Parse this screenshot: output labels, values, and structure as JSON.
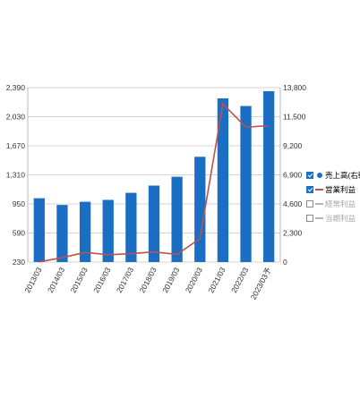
{
  "chart_data": {
    "type": "bar",
    "categories": [
      "2013/03",
      "2014/03",
      "2015/03",
      "2016/03",
      "2017/03",
      "2018/03",
      "2019/03",
      "2020/03",
      "2021/03",
      "2022/03",
      "2023/03予"
    ],
    "series": [
      {
        "name": "売上高(右軸)",
        "kind": "bar",
        "axis": "right",
        "color": "#1a6fc4",
        "values": [
          5050,
          4520,
          4770,
          4920,
          5480,
          6050,
          6750,
          8330,
          12950,
          12350,
          13520
        ]
      },
      {
        "name": "営業利益",
        "kind": "line",
        "axis": "left",
        "color": "#c0504d",
        "values": [
          232,
          285,
          350,
          320,
          335,
          355,
          325,
          520,
          2190,
          1900,
          1920
        ]
      }
    ],
    "left_axis": {
      "ticks": [
        "2,390",
        "2,030",
        "1,670",
        "1,310",
        "950",
        "590",
        "230"
      ],
      "ylim": [
        230,
        2390
      ]
    },
    "right_axis": {
      "ticks": [
        "13,800",
        "11,500",
        "9,200",
        "6,900",
        "4,600",
        "2,300",
        "0"
      ],
      "ylim": [
        0,
        13800
      ]
    },
    "grid": true,
    "legend_position": "right",
    "legend": [
      {
        "label": "売上高(右軸)",
        "checked": true,
        "marker": "dot",
        "color": "#1a6fc4"
      },
      {
        "label": "営業利益",
        "checked": true,
        "marker": "line",
        "color": "#c0504d"
      },
      {
        "label": "経常利益",
        "checked": false,
        "marker": "line",
        "color": "#b5b5b5"
      },
      {
        "label": "当期利益",
        "checked": false,
        "marker": "line",
        "color": "#b5b5b5"
      }
    ]
  }
}
